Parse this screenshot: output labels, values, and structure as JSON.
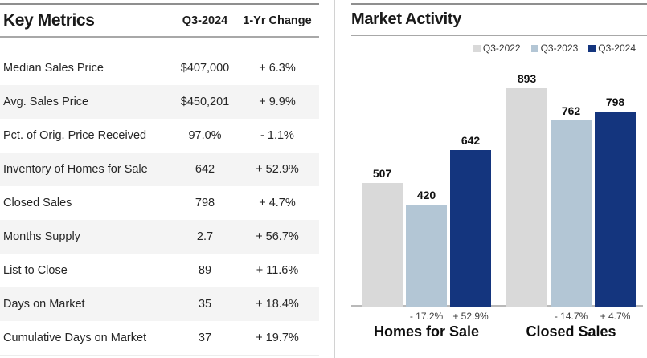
{
  "key_metrics": {
    "title": "Key Metrics",
    "columns": {
      "quarter": "Q3-2024",
      "change": "1-Yr Change"
    },
    "rows": [
      {
        "label": "Median Sales Price",
        "value": "$407,000",
        "change": "+ 6.3%"
      },
      {
        "label": "Avg. Sales Price",
        "value": "$450,201",
        "change": "+ 9.9%"
      },
      {
        "label": "Pct. of Orig. Price Received",
        "value": "97.0%",
        "change": "- 1.1%"
      },
      {
        "label": "Inventory of Homes for Sale",
        "value": "642",
        "change": "+ 52.9%"
      },
      {
        "label": "Closed Sales",
        "value": "798",
        "change": "+ 4.7%"
      },
      {
        "label": "Months Supply",
        "value": "2.7",
        "change": "+ 56.7%"
      },
      {
        "label": "List to Close",
        "value": "89",
        "change": "+ 11.6%"
      },
      {
        "label": "Days on Market",
        "value": "35",
        "change": "+ 18.4%"
      },
      {
        "label": "Cumulative Days on Market",
        "value": "37",
        "change": "+ 19.7%"
      }
    ]
  },
  "market_activity": {
    "title": "Market Activity"
  },
  "chart_data": {
    "type": "bar",
    "title": "Market Activity",
    "categories": [
      "Homes for Sale",
      "Closed Sales"
    ],
    "series": [
      {
        "name": "Q3-2022",
        "color": "#d9d9d9",
        "values": [
          507,
          893
        ]
      },
      {
        "name": "Q3-2023",
        "color": "#b3c6d5",
        "values": [
          420,
          762
        ]
      },
      {
        "name": "Q3-2024",
        "color": "#14357e",
        "values": [
          642,
          798
        ]
      }
    ],
    "pct_changes": [
      {
        "category": "Homes for Sale",
        "labels": [
          "",
          "- 17.2%",
          "+ 52.9%"
        ]
      },
      {
        "category": "Closed Sales",
        "labels": [
          "",
          "- 14.7%",
          "+ 4.7%"
        ]
      }
    ],
    "ymax": 893,
    "grid": false,
    "legend_position": "top-right"
  },
  "colors": {
    "q3_2022_bar": "#d9d9d9",
    "q3_2023_bar": "#b3c6d5",
    "q3_2024_bar": "#14357e",
    "row_stripe": "#f4f4f4",
    "rule_line": "#a8a8a8"
  }
}
